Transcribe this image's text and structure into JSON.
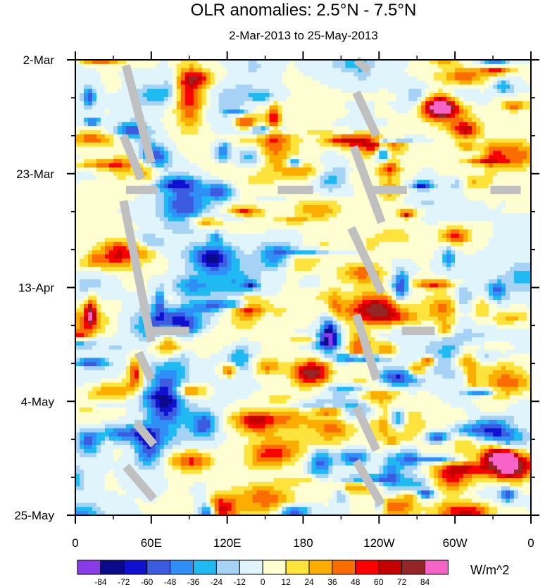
{
  "chart_data": {
    "type": "heatmap",
    "title": "OLR anomalies: 2.5°N - 7.5°N",
    "subtitle": "2-Mar-2013 to 25-May-2013",
    "x_tick_labels": [
      "0",
      "60E",
      "120E",
      "180",
      "120W",
      "60W",
      "0"
    ],
    "x_tick_values_deg_east": [
      0,
      60,
      120,
      180,
      240,
      300,
      360
    ],
    "y_tick_labels": [
      "2-Mar",
      "23-Mar",
      "13-Apr",
      "4-May",
      "25-May"
    ],
    "y_tick_dates": [
      "2013-03-02",
      "2013-03-23",
      "2013-04-13",
      "2013-05-04",
      "2013-05-25"
    ],
    "x_range_deg_east": [
      0,
      360
    ],
    "y_range_dates": [
      "2013-03-02",
      "2013-05-25"
    ],
    "colorbar": {
      "units": "W/m^2",
      "levels": [
        -84,
        -72,
        -60,
        -48,
        -36,
        -24,
        -12,
        0,
        12,
        24,
        36,
        48,
        60,
        72,
        84
      ],
      "colors": [
        "#8a3be8",
        "#0a0a8a",
        "#1010d0",
        "#3c5ce0",
        "#2f8ff7",
        "#1fbaf2",
        "#a6d2f5",
        "#dff5fb",
        "#fffed0",
        "#fde33c",
        "#fbad00",
        "#fb6d00",
        "#fb0000",
        "#c40000",
        "#942626",
        "#f763c6"
      ]
    },
    "missing_color": "#c0c0c0",
    "missing_segments_deg_date": [
      [
        [
          40,
          "2013-03-03"
        ],
        [
          60,
          "2013-03-21"
        ]
      ],
      [
        [
          38,
          "2013-03-16"
        ],
        [
          52,
          "2013-03-24"
        ]
      ],
      [
        [
          40,
          "2013-03-26"
        ],
        [
          65,
          "2013-03-26"
        ]
      ],
      [
        [
          38,
          "2013-03-28"
        ],
        [
          60,
          "2013-04-23"
        ]
      ],
      [
        [
          60,
          "2013-04-21"
        ],
        [
          90,
          "2013-04-21"
        ]
      ],
      [
        [
          50,
          "2013-04-25"
        ],
        [
          60,
          "2013-04-30"
        ]
      ],
      [
        [
          48,
          "2013-05-08"
        ],
        [
          62,
          "2013-05-12"
        ]
      ],
      [
        [
          40,
          "2013-05-16"
        ],
        [
          62,
          "2013-05-22"
        ]
      ],
      [
        [
          160,
          "2013-03-26"
        ],
        [
          188,
          "2013-03-26"
        ]
      ],
      [
        [
          222,
          "2013-03-02"
        ],
        [
          232,
          "2013-03-04"
        ]
      ],
      [
        [
          222,
          "2013-03-08"
        ],
        [
          238,
          "2013-03-16"
        ]
      ],
      [
        [
          220,
          "2013-03-18"
        ],
        [
          242,
          "2013-04-01"
        ]
      ],
      [
        [
          218,
          "2013-04-02"
        ],
        [
          242,
          "2013-04-14"
        ]
      ],
      [
        [
          222,
          "2013-04-18"
        ],
        [
          238,
          "2013-04-30"
        ]
      ],
      [
        [
          222,
          "2013-05-05"
        ],
        [
          238,
          "2013-05-13"
        ]
      ],
      [
        [
          222,
          "2013-05-15"
        ],
        [
          242,
          "2013-05-23"
        ]
      ],
      [
        [
          232,
          "2013-03-26"
        ],
        [
          262,
          "2013-03-26"
        ]
      ],
      [
        [
          258,
          "2013-04-21"
        ],
        [
          284,
          "2013-04-21"
        ]
      ],
      [
        [
          328,
          "2013-03-26"
        ],
        [
          352,
          "2013-03-26"
        ]
      ]
    ]
  }
}
